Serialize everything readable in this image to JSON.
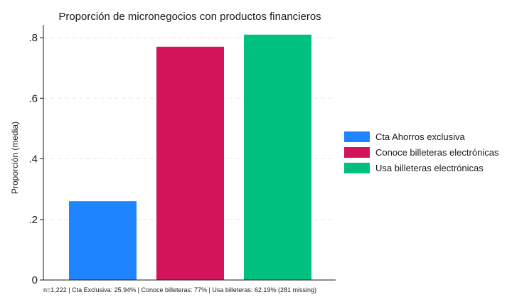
{
  "chart_data": {
    "type": "bar",
    "title": "Proporción de micronegocios con productos financieros",
    "ylabel": "Proporción (media)",
    "xlabel": "",
    "ylim": [
      0,
      0.8
    ],
    "yticks": [
      0,
      0.2,
      0.4,
      0.6,
      0.8
    ],
    "ytick_labels": [
      "0",
      ".2",
      ".4",
      ".6",
      ".8"
    ],
    "grid": true,
    "legend_position": "right",
    "series": [
      {
        "name": "Cta Ahorros exclusiva",
        "value": 0.26,
        "color": "#1f84ff"
      },
      {
        "name": "Conoce billeteras electrónicas",
        "value": 0.77,
        "color": "#d4145a"
      },
      {
        "name": "Usa billeteras electrónicas",
        "value": 0.81,
        "color": "#00c07f"
      }
    ],
    "note": "n=1,222 | Cta Exclusiva: 25.94% |  Conoce billeteras: 77% |  Usa billeteras: 62.19% (281 missing)"
  }
}
